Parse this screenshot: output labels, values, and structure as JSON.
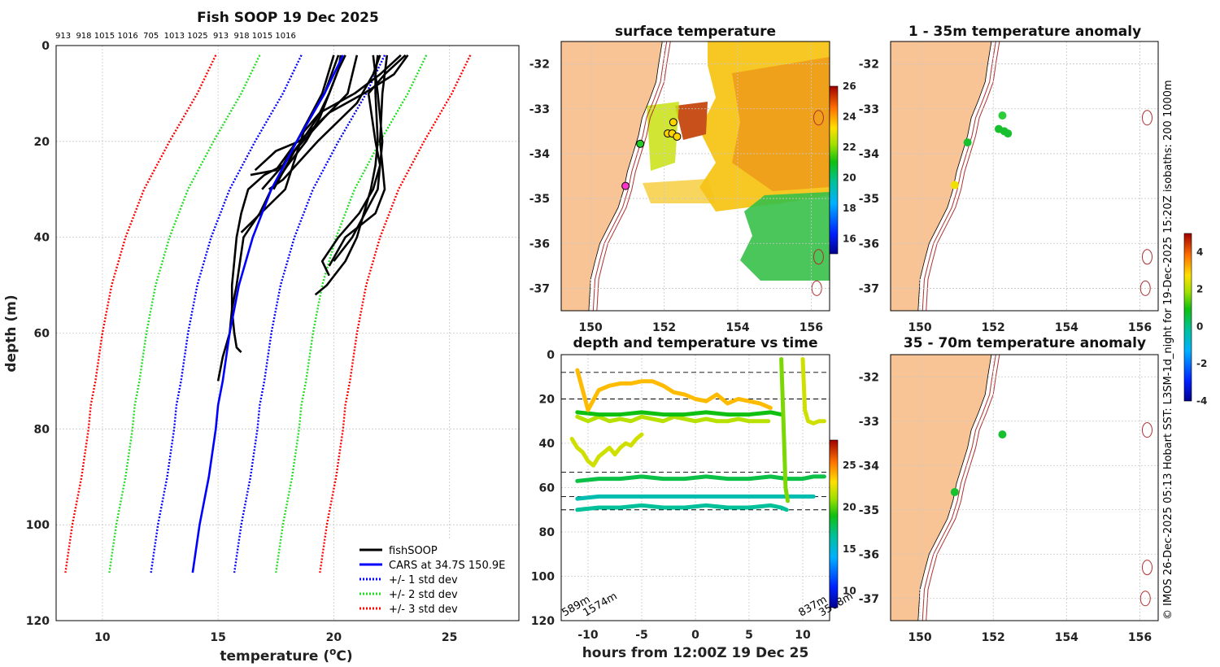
{
  "figure_title": "Fish SOOP 19 Dec 2025",
  "station_codes": "913  918 1015 1016  705  1013 1025  913  918 1015 1016",
  "side_note": "© IMOS 26-Dec-2025 05:13 Hobart SST: L3SM-1d_night for 19-Dec-2025 15:20Z isobaths: 200  1000m",
  "colors": {
    "fishsoop": "#000000",
    "cars": "#0000ff",
    "std1": "#0000ff",
    "std2": "#22dd22",
    "std3": "#ff0000",
    "land": "#f9c495",
    "isobath": "#b03030"
  },
  "chart_data": [
    {
      "id": "profile",
      "type": "line",
      "title": "Fish SOOP 19 Dec 2025",
      "xlabel": "temperature (°C)",
      "ylabel": "depth (m)",
      "xlim": [
        8,
        28
      ],
      "ylim": [
        0,
        120
      ],
      "y_reversed": true,
      "xticks": [
        10,
        15,
        20,
        25
      ],
      "yticks": [
        0,
        20,
        40,
        60,
        80,
        100,
        120
      ],
      "legend": [
        {
          "label": "fishSOOP",
          "key": "fishsoop",
          "style": "solid"
        },
        {
          "label": "CARS at 34.7S 150.9E",
          "key": "cars",
          "style": "solid"
        },
        {
          "label": "+/- 1 std dev",
          "key": "std1",
          "style": "dotted"
        },
        {
          "label": "+/- 2 std dev",
          "key": "std2",
          "style": "dotted"
        },
        {
          "label": "+/- 3 std dev",
          "key": "std3",
          "style": "dotted"
        }
      ],
      "cars": {
        "depth": [
          2,
          10,
          20,
          30,
          40,
          50,
          60,
          70,
          75,
          80,
          90,
          100,
          110
        ],
        "temp": [
          20.4,
          19.6,
          18.4,
          17.3,
          16.5,
          15.9,
          15.5,
          15.2,
          15.0,
          14.9,
          14.6,
          14.2,
          13.9
        ]
      },
      "std_width": [
        0,
        1.8,
        3.6,
        5.5
      ],
      "fishsoop": [
        {
          "depth": [
            2,
            5,
            10,
            15,
            20,
            25,
            30,
            35,
            40,
            50,
            55,
            60,
            65,
            70
          ],
          "temp": [
            20.5,
            20.2,
            19.8,
            19.4,
            18.8,
            18.0,
            17.3,
            16.8,
            16.1,
            15.8,
            15.6,
            15.5,
            15.2,
            15.0
          ]
        },
        {
          "depth": [
            2,
            5,
            10,
            15,
            20,
            25,
            27,
            30,
            35,
            40,
            45,
            50,
            55,
            60,
            63,
            64
          ],
          "temp": [
            20.3,
            20.2,
            19.8,
            19.3,
            18.6,
            17.8,
            17.0,
            16.3,
            16.0,
            15.8,
            15.7,
            15.6,
            15.6,
            15.7,
            15.8,
            16.0
          ]
        },
        {
          "depth": [
            2,
            10,
            20,
            26,
            27
          ],
          "temp": [
            20.0,
            19.5,
            18.4,
            17.5,
            16.4
          ]
        },
        {
          "depth": [
            2,
            10,
            15,
            20,
            25,
            30
          ],
          "temp": [
            20.2,
            19.6,
            19.0,
            18.4,
            17.8,
            16.9
          ]
        },
        {
          "depth": [
            2,
            10,
            15,
            22,
            30
          ],
          "temp": [
            21.0,
            20.6,
            19.6,
            18.3,
            17.4
          ]
        },
        {
          "depth": [
            2,
            6,
            12,
            20,
            28,
            30
          ],
          "temp": [
            22.0,
            21.7,
            21.0,
            19.3,
            17.8,
            17.2
          ]
        },
        {
          "depth": [
            2,
            6,
            10,
            20,
            25,
            30,
            40,
            45,
            50,
            52
          ],
          "temp": [
            21.9,
            21.8,
            21.8,
            21.9,
            21.8,
            21.6,
            21.0,
            20.5,
            19.7,
            19.2
          ]
        },
        {
          "depth": [
            2,
            6,
            10,
            20,
            25,
            30,
            35,
            40,
            45,
            48
          ],
          "temp": [
            21.7,
            21.8,
            21.9,
            22.1,
            22.0,
            21.7,
            21.1,
            20.2,
            19.5,
            19.8
          ]
        },
        {
          "depth": [
            2,
            6,
            10,
            20,
            25,
            30,
            35,
            40,
            46
          ],
          "temp": [
            22.3,
            22.2,
            22.1,
            22.0,
            22.1,
            22.2,
            21.8,
            20.5,
            19.8
          ]
        },
        {
          "depth": [
            2,
            6,
            10,
            20,
            25,
            30,
            40,
            45
          ],
          "temp": [
            23.1,
            22.2,
            21.5,
            21.8,
            22.0,
            21.9,
            20.8,
            20.0
          ]
        },
        {
          "depth": [
            2,
            6,
            10,
            14,
            20,
            22,
            26
          ],
          "temp": [
            23.2,
            22.6,
            21.3,
            19.8,
            18.5,
            17.5,
            16.6
          ]
        },
        {
          "depth": [
            2,
            6,
            10,
            14,
            18,
            30,
            39
          ],
          "temp": [
            22.9,
            22.0,
            20.9,
            19.4,
            18.7,
            17.9,
            16.0
          ]
        }
      ]
    },
    {
      "id": "sst",
      "type": "heatmap",
      "title": "surface temperature",
      "xlim": [
        149.2,
        156.5
      ],
      "ylim": [
        -37.5,
        -31.5
      ],
      "xticks": [
        150,
        152,
        154,
        156
      ],
      "yticks": [
        -32,
        -33,
        -34,
        -35,
        -36,
        -37
      ],
      "xticklabels": [
        "150",
        "152",
        "154",
        "156"
      ],
      "yticklabels": [
        "-32",
        "-33",
        "-34",
        "-35",
        "-36",
        "-37"
      ],
      "colorbar": {
        "min": 15,
        "max": 26,
        "ticks": [
          "16",
          "18",
          "20",
          "22",
          "24",
          "26"
        ]
      },
      "markers": [
        {
          "lon": 151.35,
          "lat": -33.78,
          "color": "#22cc22"
        },
        {
          "lon": 152.25,
          "lat": -33.3,
          "color": "#ffd400"
        },
        {
          "lon": 152.1,
          "lat": -33.55,
          "color": "#ffd400"
        },
        {
          "lon": 152.22,
          "lat": -33.55,
          "color": "#ffd400"
        },
        {
          "lon": 152.35,
          "lat": -33.62,
          "color": "#ffd400"
        },
        {
          "lon": 150.95,
          "lat": -34.72,
          "color": "#ff33cc"
        }
      ]
    },
    {
      "id": "timeseries",
      "type": "line",
      "title": "depth and temperature vs time",
      "xlabel": "hours from 12:00Z 19 Dec 25",
      "xlim": [
        -12.5,
        12.5
      ],
      "ylim": [
        0,
        120
      ],
      "y_reversed": true,
      "xticks": [
        -10,
        -5,
        0,
        5,
        10
      ],
      "yticks": [
        0,
        20,
        40,
        60,
        80,
        100,
        120
      ],
      "xticklabels": [
        "-10",
        "-5",
        "0",
        "5",
        "10"
      ],
      "yticklabels": [
        "0",
        "20",
        "40",
        "60",
        "80",
        "100",
        "120"
      ],
      "colorbar": {
        "min": 8,
        "max": 28,
        "ticks": [
          "10",
          "15",
          "20",
          "25"
        ]
      },
      "annotations": [
        "589m",
        "1574m",
        "837m",
        "3508m"
      ],
      "series": [
        {
          "temp": 21.5,
          "x": [
            -11,
            -10.5,
            -10,
            -9,
            -8,
            -7,
            -6,
            -5,
            -4,
            -3,
            -2,
            -1,
            0,
            1,
            2,
            3,
            4,
            5,
            6,
            6.8
          ],
          "y": [
            28,
            29,
            30,
            28,
            30,
            29,
            30,
            28,
            29,
            30,
            28,
            29,
            30,
            29,
            30,
            30,
            29,
            30,
            30,
            30
          ]
        },
        {
          "temp": 19.0,
          "x": [
            -11,
            -9,
            -7,
            -5,
            -3,
            -1,
            1,
            3,
            5,
            7,
            8
          ],
          "y": [
            26,
            27,
            27,
            26,
            27,
            27,
            26,
            27,
            27,
            26,
            27
          ]
        },
        {
          "temp": 18.0,
          "x": [
            -11,
            -9,
            -7,
            -5,
            -3,
            -1,
            1,
            3,
            5,
            7,
            8.5,
            9,
            10,
            11,
            12
          ],
          "y": [
            57,
            56,
            56,
            55,
            56,
            56,
            55,
            56,
            56,
            55,
            56,
            56,
            56,
            55,
            55
          ]
        },
        {
          "temp": 16.5,
          "x": [
            -11,
            -9,
            -7,
            -5,
            -3,
            -1,
            1,
            3,
            5,
            7,
            8,
            8.5
          ],
          "y": [
            70,
            69,
            69,
            68,
            69,
            69,
            68,
            69,
            69,
            68,
            69,
            70
          ]
        },
        {
          "temp": 16.0,
          "x": [
            -11,
            -9,
            -7,
            -5,
            -3,
            -1,
            1,
            3,
            5,
            7,
            8,
            9,
            10,
            11
          ],
          "y": [
            65,
            64,
            64,
            64,
            64,
            64,
            64,
            64,
            64,
            64,
            64,
            64,
            64,
            64
          ]
        },
        {
          "temp": 23.8,
          "x": [
            -11,
            -10,
            -9,
            -8,
            -7,
            -6,
            -5,
            -4,
            -3,
            -2,
            -1,
            0,
            1,
            2,
            3,
            4,
            5,
            6,
            7
          ],
          "y": [
            7,
            25,
            16,
            14,
            13,
            13,
            12,
            12,
            14,
            17,
            18,
            20,
            21,
            18,
            22,
            20,
            21,
            22,
            24
          ]
        },
        {
          "temp": 22.0,
          "x": [
            -11.5,
            -11,
            -10.5,
            -10,
            -9.5,
            -9,
            -8.5,
            -8,
            -7.5,
            -7,
            -6.5,
            -6,
            -5.5,
            -5
          ],
          "y": [
            38,
            42,
            44,
            48,
            50,
            46,
            44,
            42,
            45,
            42,
            40,
            41,
            38,
            36
          ]
        },
        {
          "temp": 20.5,
          "x": [
            8,
            8.2,
            8.4,
            8.6
          ],
          "y": [
            2,
            30,
            60,
            66
          ]
        },
        {
          "temp": 22.0,
          "x": [
            10,
            10.2,
            10.5,
            11,
            11.5,
            12
          ],
          "y": [
            2,
            25,
            30,
            31,
            30,
            30
          ]
        }
      ],
      "hlines": [
        8,
        20,
        53,
        64,
        70
      ]
    },
    {
      "id": "anom1",
      "type": "scatter",
      "title": "1 - 35m temperature anomaly",
      "xlim": [
        149.2,
        156.5
      ],
      "ylim": [
        -37.5,
        -31.5
      ],
      "xticks": [
        150,
        152,
        154,
        156
      ],
      "yticks": [
        -32,
        -33,
        -34,
        -35,
        -36,
        -37
      ],
      "xticklabels": [
        "150",
        "152",
        "154",
        "156"
      ],
      "yticklabels": [
        "-32",
        "-33",
        "-34",
        "-35",
        "-36",
        "-37"
      ],
      "colorbar": {
        "min": -4,
        "max": 5,
        "ticks": [
          "4",
          "2",
          "0",
          "-2",
          "-4"
        ]
      },
      "points": [
        {
          "lon": 151.3,
          "lat": -33.75,
          "anom": 0.2
        },
        {
          "lon": 152.25,
          "lat": -33.15,
          "anom": 0.5
        },
        {
          "lon": 152.15,
          "lat": -33.45,
          "anom": 0.4
        },
        {
          "lon": 152.3,
          "lat": -33.5,
          "anom": 0.1
        },
        {
          "lon": 152.4,
          "lat": -33.55,
          "anom": -0.2
        },
        {
          "lon": 150.95,
          "lat": -34.7,
          "anom": 2.4
        }
      ]
    },
    {
      "id": "anom2",
      "type": "scatter",
      "title": "35 - 70m temperature anomaly",
      "xlim": [
        149.2,
        156.5
      ],
      "ylim": [
        -37.5,
        -31.5
      ],
      "xticks": [
        150,
        152,
        154,
        156
      ],
      "yticks": [
        -32,
        -33,
        -34,
        -35,
        -36,
        -37
      ],
      "xticklabels": [
        "150",
        "152",
        "154",
        "156"
      ],
      "yticklabels": [
        "-32",
        "-33",
        "-34",
        "-35",
        "-36",
        "-37"
      ],
      "points": [
        {
          "lon": 152.25,
          "lat": -33.3,
          "anom": 0.3
        },
        {
          "lon": 150.95,
          "lat": -34.6,
          "anom": 0.2
        }
      ]
    }
  ]
}
